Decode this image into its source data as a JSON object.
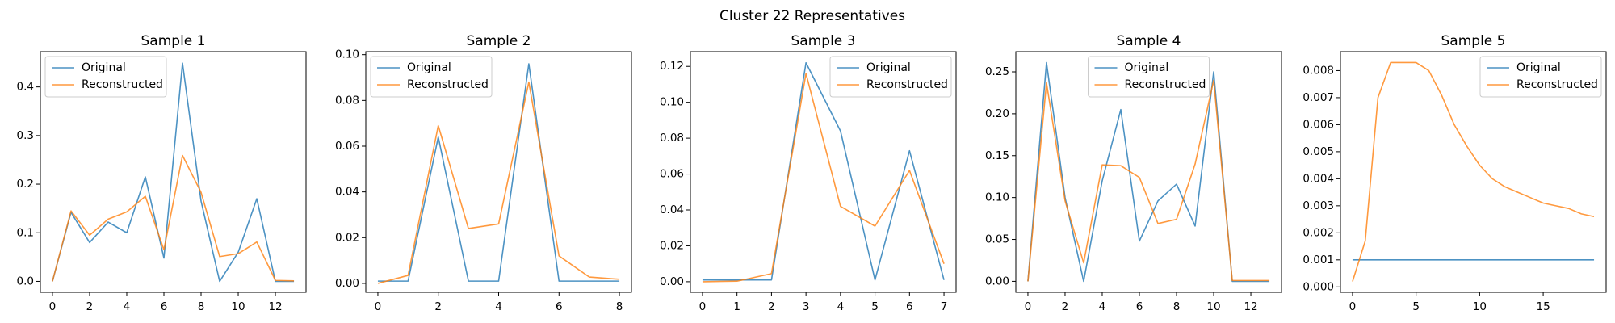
{
  "figure": {
    "suptitle": "Cluster 22 Representatives",
    "series_colors": {
      "Original": "#1f77b4",
      "Reconstructed": "#ff7f0e"
    }
  },
  "chart_data": [
    {
      "type": "line",
      "title": "Sample 1",
      "xlabel": "",
      "ylabel": "",
      "xlim": [
        -0.65,
        13.65
      ],
      "ylim": [
        -0.0225,
        0.4725
      ],
      "xticks": [
        0,
        2,
        4,
        6,
        8,
        10,
        12
      ],
      "yticks": [
        0.0,
        0.1,
        0.2,
        0.3,
        0.4
      ],
      "ytick_decimals": 1,
      "legend": "upper-left",
      "series": [
        {
          "name": "Original",
          "color": "#1f77b4",
          "x": [
            0,
            1,
            2,
            3,
            4,
            5,
            6,
            7,
            8,
            9,
            10,
            11,
            12,
            13
          ],
          "y": [
            0.0,
            0.142,
            0.08,
            0.122,
            0.1,
            0.215,
            0.048,
            0.449,
            0.165,
            0.0,
            0.06,
            0.17,
            0.0,
            0.0
          ]
        },
        {
          "name": "Reconstructed",
          "color": "#ff7f0e",
          "x": [
            0,
            1,
            2,
            3,
            4,
            5,
            6,
            7,
            8,
            9,
            10,
            11,
            12,
            13
          ],
          "y": [
            0.0,
            0.145,
            0.095,
            0.128,
            0.143,
            0.175,
            0.065,
            0.259,
            0.183,
            0.051,
            0.057,
            0.081,
            0.002,
            0.001
          ]
        }
      ]
    },
    {
      "type": "line",
      "title": "Sample 2",
      "xlabel": "",
      "ylabel": "",
      "xlim": [
        -0.4,
        8.4
      ],
      "ylim": [
        -0.0039,
        0.1013
      ],
      "xticks": [
        0,
        2,
        4,
        6,
        8
      ],
      "yticks": [
        0.0,
        0.02,
        0.04,
        0.06,
        0.08,
        0.1
      ],
      "ytick_decimals": 2,
      "legend": "upper-left",
      "series": [
        {
          "name": "Original",
          "color": "#1f77b4",
          "x": [
            0,
            1,
            2,
            3,
            4,
            5,
            6,
            7,
            8
          ],
          "y": [
            0.001,
            0.001,
            0.064,
            0.001,
            0.001,
            0.096,
            0.001,
            0.001,
            0.001
          ]
        },
        {
          "name": "Reconstructed",
          "color": "#ff7f0e",
          "x": [
            0,
            1,
            2,
            3,
            4,
            5,
            6,
            7,
            8
          ],
          "y": [
            0.0,
            0.0035,
            0.069,
            0.024,
            0.026,
            0.088,
            0.012,
            0.0028,
            0.0018
          ]
        }
      ]
    },
    {
      "type": "line",
      "title": "Sample 3",
      "xlabel": "",
      "ylabel": "",
      "xlim": [
        -0.35,
        7.35
      ],
      "ylim": [
        -0.0059,
        0.1282
      ],
      "xticks": [
        0,
        1,
        2,
        3,
        4,
        5,
        6,
        7
      ],
      "yticks": [
        0.0,
        0.02,
        0.04,
        0.06,
        0.08,
        0.1,
        0.12
      ],
      "ytick_decimals": 2,
      "legend": "upper-right",
      "series": [
        {
          "name": "Original",
          "color": "#1f77b4",
          "x": [
            0,
            1,
            2,
            3,
            4,
            5,
            6,
            7
          ],
          "y": [
            0.001,
            0.001,
            0.001,
            0.122,
            0.084,
            0.001,
            0.073,
            0.001
          ]
        },
        {
          "name": "Reconstructed",
          "color": "#ff7f0e",
          "x": [
            0,
            1,
            2,
            3,
            4,
            5,
            6,
            7
          ],
          "y": [
            0.0,
            0.0003,
            0.0045,
            0.116,
            0.042,
            0.031,
            0.062,
            0.01
          ]
        }
      ]
    },
    {
      "type": "line",
      "title": "Sample 4",
      "xlabel": "",
      "ylabel": "",
      "xlim": [
        -0.65,
        13.65
      ],
      "ylim": [
        -0.0131,
        0.2741
      ],
      "xticks": [
        0,
        2,
        4,
        6,
        8,
        10,
        12
      ],
      "yticks": [
        0.0,
        0.05,
        0.1,
        0.15,
        0.2,
        0.25
      ],
      "ytick_decimals": 2,
      "legend": "upper-center",
      "series": [
        {
          "name": "Original",
          "color": "#1f77b4",
          "x": [
            0,
            1,
            2,
            3,
            4,
            5,
            6,
            7,
            8,
            9,
            10,
            11,
            12,
            13
          ],
          "y": [
            0.0,
            0.261,
            0.1,
            0.0,
            0.12,
            0.205,
            0.048,
            0.096,
            0.116,
            0.066,
            0.25,
            0.0,
            0.0,
            0.0
          ]
        },
        {
          "name": "Reconstructed",
          "color": "#ff7f0e",
          "x": [
            0,
            1,
            2,
            3,
            4,
            5,
            6,
            7,
            8,
            9,
            10,
            11,
            12,
            13
          ],
          "y": [
            0.0,
            0.237,
            0.096,
            0.022,
            0.139,
            0.138,
            0.124,
            0.069,
            0.074,
            0.14,
            0.24,
            0.001,
            0.001,
            0.001
          ]
        }
      ]
    },
    {
      "type": "line",
      "title": "Sample 5",
      "xlabel": "",
      "ylabel": "",
      "xlim": [
        -0.95,
        19.95
      ],
      "ylim": [
        -0.0002,
        0.0087
      ],
      "xticks": [
        0,
        5,
        10,
        15
      ],
      "yticks": [
        0.0,
        0.001,
        0.002,
        0.003,
        0.004,
        0.005,
        0.006,
        0.007,
        0.008
      ],
      "ytick_decimals": 3,
      "legend": "upper-right",
      "series": [
        {
          "name": "Original",
          "color": "#1f77b4",
          "x": [
            0,
            1,
            2,
            3,
            4,
            5,
            6,
            7,
            8,
            9,
            10,
            11,
            12,
            13,
            14,
            15,
            16,
            17,
            18,
            19
          ],
          "y": [
            0.001,
            0.001,
            0.001,
            0.001,
            0.001,
            0.001,
            0.001,
            0.001,
            0.001,
            0.001,
            0.001,
            0.001,
            0.001,
            0.001,
            0.001,
            0.001,
            0.001,
            0.001,
            0.001,
            0.001
          ]
        },
        {
          "name": "Reconstructed",
          "color": "#ff7f0e",
          "x": [
            0,
            1,
            2,
            3,
            4,
            5,
            6,
            7,
            8,
            9,
            10,
            11,
            12,
            13,
            14,
            15,
            16,
            17,
            18,
            19
          ],
          "y": [
            0.0002,
            0.0017,
            0.007,
            0.0083,
            0.0083,
            0.0083,
            0.008,
            0.0071,
            0.006,
            0.0052,
            0.0045,
            0.004,
            0.0037,
            0.0035,
            0.0033,
            0.0031,
            0.003,
            0.0029,
            0.0027,
            0.0026
          ]
        }
      ]
    }
  ]
}
